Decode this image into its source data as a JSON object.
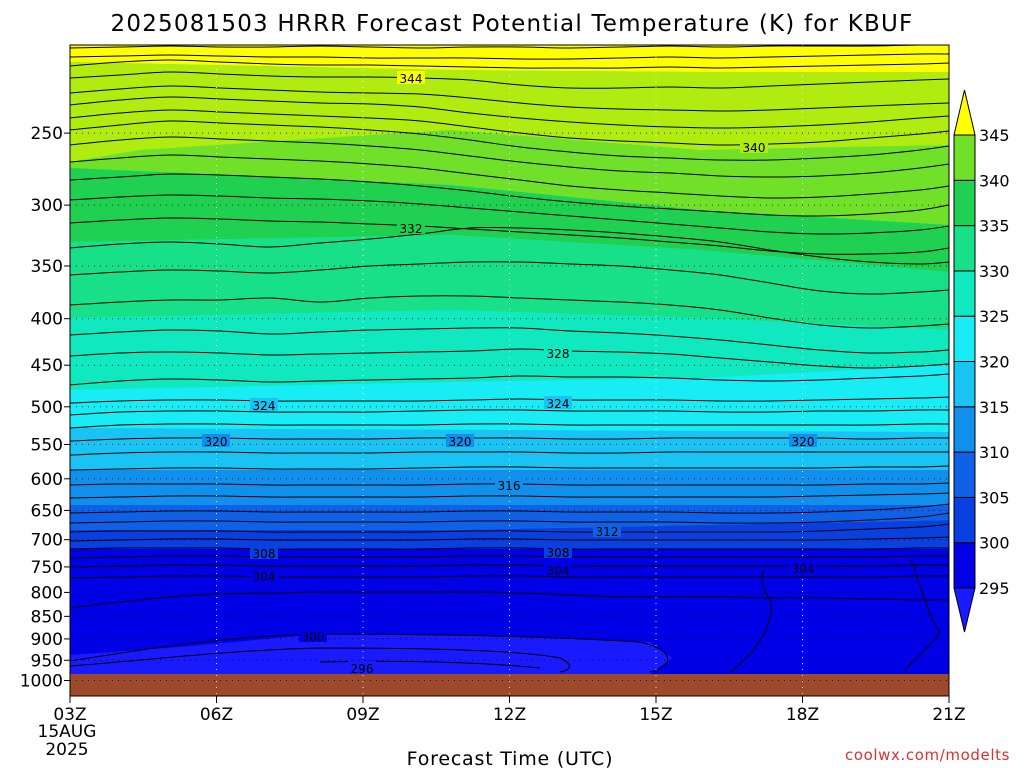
{
  "chart_data": {
    "type": "heatmap",
    "title": "2025081503 HRRR Forecast Potential Temperature (K) for KBUF",
    "xlabel": "Forecast Time (UTC)",
    "ylabel": "",
    "x_ticks": [
      "03Z",
      "06Z",
      "09Z",
      "12Z",
      "15Z",
      "18Z",
      "21Z"
    ],
    "x_start_date": [
      "15AUG",
      "2025"
    ],
    "y_ticks": [
      250,
      300,
      350,
      400,
      450,
      500,
      550,
      600,
      650,
      700,
      750,
      800,
      850,
      900,
      950,
      1000
    ],
    "y_scale": "log-pressure",
    "y_range": [
      200,
      1040
    ],
    "colorbar": {
      "levels": [
        295,
        300,
        305,
        310,
        315,
        320,
        325,
        330,
        335,
        340,
        345
      ],
      "colors": [
        "#1a1aff",
        "#0000e6",
        "#0a3fe0",
        "#0f62e8",
        "#1090ec",
        "#19c4f4",
        "#18ecf4",
        "#10e8c0",
        "#18e088",
        "#20d050",
        "#70e028",
        "#b0ec10",
        "#ffff00"
      ],
      "extend": "both"
    },
    "grid": "dotted",
    "contour_labels": [
      "344",
      "340",
      "332",
      "328",
      "324",
      "324",
      "320",
      "320",
      "320",
      "316",
      "312",
      "308",
      "308",
      "304",
      "304",
      "304",
      "300",
      "296"
    ],
    "ground_color": "#9c4a2c"
  },
  "credit": "coolwx.com/modelts"
}
